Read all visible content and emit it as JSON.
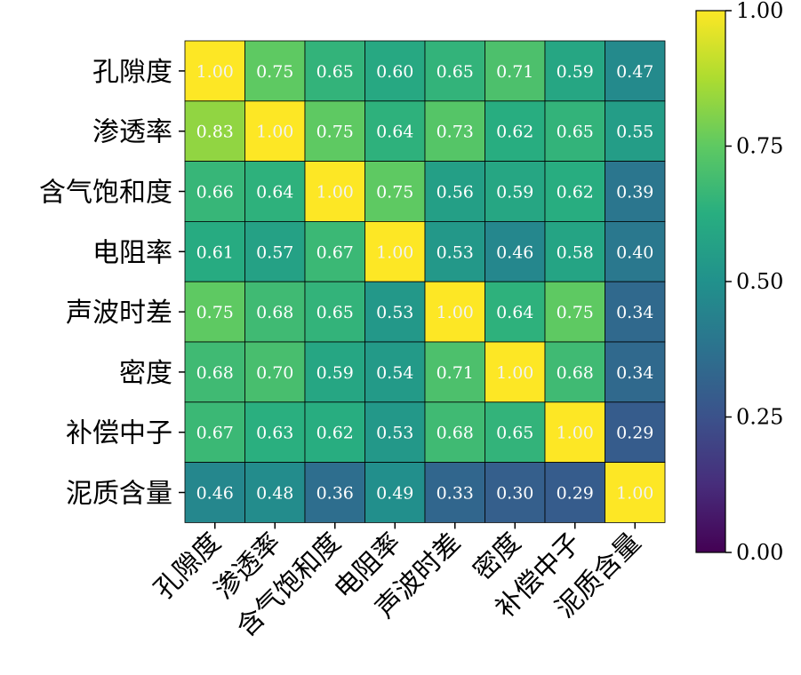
{
  "chart_data": {
    "type": "heatmap",
    "title": "",
    "xlabel": "",
    "ylabel": "",
    "rows": [
      "孔隙度",
      "渗透率",
      "含气饱和度",
      "电阻率",
      "声波时差",
      "密度",
      "补偿中子",
      "泥质含量"
    ],
    "columns": [
      "孔隙度",
      "渗透率",
      "含气饱和度",
      "电阻率",
      "声波时差",
      "密度",
      "补偿中子",
      "泥质含量"
    ],
    "values": [
      [
        1.0,
        0.75,
        0.65,
        0.6,
        0.65,
        0.71,
        0.59,
        0.47
      ],
      [
        0.83,
        1.0,
        0.75,
        0.64,
        0.73,
        0.62,
        0.65,
        0.55
      ],
      [
        0.66,
        0.64,
        1.0,
        0.75,
        0.56,
        0.59,
        0.62,
        0.39
      ],
      [
        0.61,
        0.57,
        0.67,
        1.0,
        0.53,
        0.46,
        0.58,
        0.4
      ],
      [
        0.75,
        0.68,
        0.65,
        0.53,
        1.0,
        0.64,
        0.75,
        0.34
      ],
      [
        0.68,
        0.7,
        0.59,
        0.54,
        0.71,
        1.0,
        0.68,
        0.34
      ],
      [
        0.67,
        0.63,
        0.62,
        0.53,
        0.68,
        0.65,
        1.0,
        0.29
      ],
      [
        0.46,
        0.48,
        0.36,
        0.49,
        0.33,
        0.3,
        0.29,
        1.0
      ]
    ],
    "value_format": "0.00",
    "colormap": "viridis",
    "vmin": 0.0,
    "vmax": 1.0,
    "colorbar": {
      "ticks": [
        0.0,
        0.25,
        0.5,
        0.75,
        1.0
      ],
      "tick_labels": [
        "0.00",
        "0.25",
        "0.50",
        "0.75",
        "1.00"
      ],
      "placement": "right"
    },
    "colors": {
      "viridis_low": "#440154",
      "viridis_mid": "#21918c",
      "viridis_high": "#fde725",
      "text_on_dark": "#ffffff",
      "text_on_bright": "#f2f2f2",
      "cell_border": "#000000"
    }
  }
}
